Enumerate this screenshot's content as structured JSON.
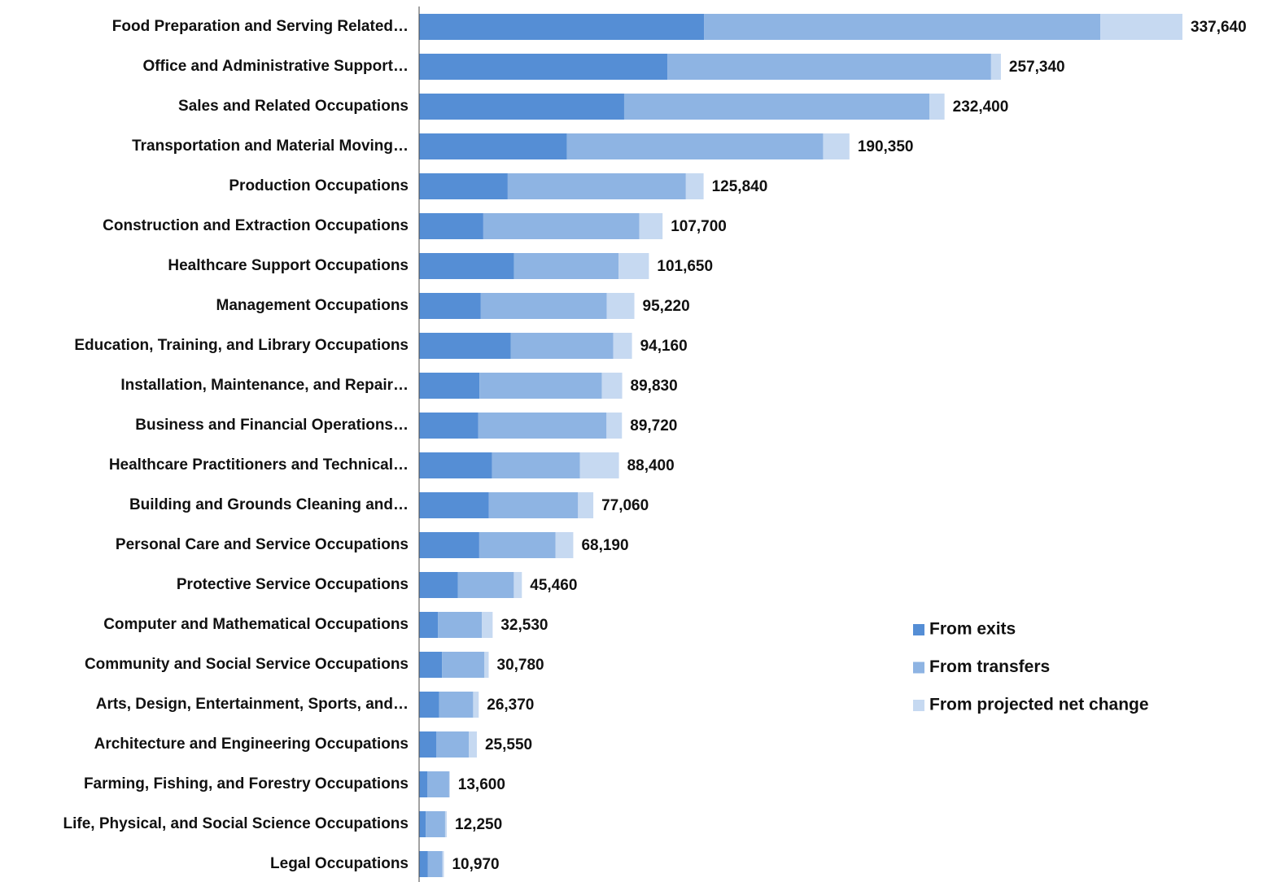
{
  "chart_data": {
    "type": "stacked-bar",
    "categories": [
      "Food Preparation and Serving Related…",
      "Office and Administrative Support…",
      "Sales and Related Occupations",
      "Transportation and Material Moving…",
      "Production Occupations",
      "Construction and Extraction Occupations",
      "Healthcare Support Occupations",
      "Management Occupations",
      "Education, Training, and Library Occupations",
      "Installation, Maintenance, and Repair…",
      "Business and Financial Operations…",
      "Healthcare Practitioners and Technical…",
      "Building and Grounds Cleaning and…",
      "Personal Care and Service Occupations",
      "Protective Service Occupations",
      "Computer and Mathematical Occupations",
      "Community and Social Service Occupations",
      "Arts, Design, Entertainment, Sports, and…",
      "Architecture and Engineering Occupations",
      "Farming, Fishing, and Forestry Occupations",
      "Life, Physical, and Social Science Occupations",
      "Legal Occupations"
    ],
    "series": [
      {
        "name": "From exits",
        "color": "#558ed5",
        "values": [
          126000,
          109800,
          90700,
          65400,
          39200,
          28400,
          42000,
          27300,
          40600,
          26700,
          26200,
          32300,
          30800,
          26600,
          17200,
          8300,
          10100,
          8900,
          7560,
          3600,
          2900,
          3900
        ]
      },
      {
        "name": "From transfers",
        "color": "#8eb4e3",
        "values": [
          175300,
          143200,
          135000,
          113300,
          78800,
          69000,
          46200,
          55700,
          45300,
          54100,
          56700,
          38800,
          39500,
          33700,
          24700,
          19500,
          18800,
          15000,
          14400,
          9700,
          8600,
          6400
        ]
      },
      {
        "name": "From projected net change",
        "color": "#c6d9f1",
        "values": [
          36340,
          4340,
          6700,
          11650,
          7840,
          10300,
          13450,
          12220,
          8260,
          9030,
          6820,
          17300,
          6760,
          7890,
          3560,
          4730,
          1880,
          2470,
          3590,
          300,
          750,
          670
        ]
      }
    ],
    "totals": [
      337640,
      257340,
      232400,
      190350,
      125840,
      107700,
      101650,
      95220,
      94160,
      89830,
      89720,
      88400,
      77060,
      68190,
      45460,
      32530,
      30780,
      26370,
      25550,
      13600,
      12250,
      10970
    ],
    "total_labels": [
      "337,640",
      "257,340",
      "232,400",
      "190,350",
      "125,840",
      "107,700",
      "101,650",
      "95,220",
      "94,160",
      "89,830",
      "89,720",
      "88,400",
      "77,060",
      "68,190",
      "45,460",
      "32,530",
      "30,780",
      "26,370",
      "25,550",
      "13,600",
      "12,250",
      "10,970"
    ],
    "legend": "right"
  }
}
